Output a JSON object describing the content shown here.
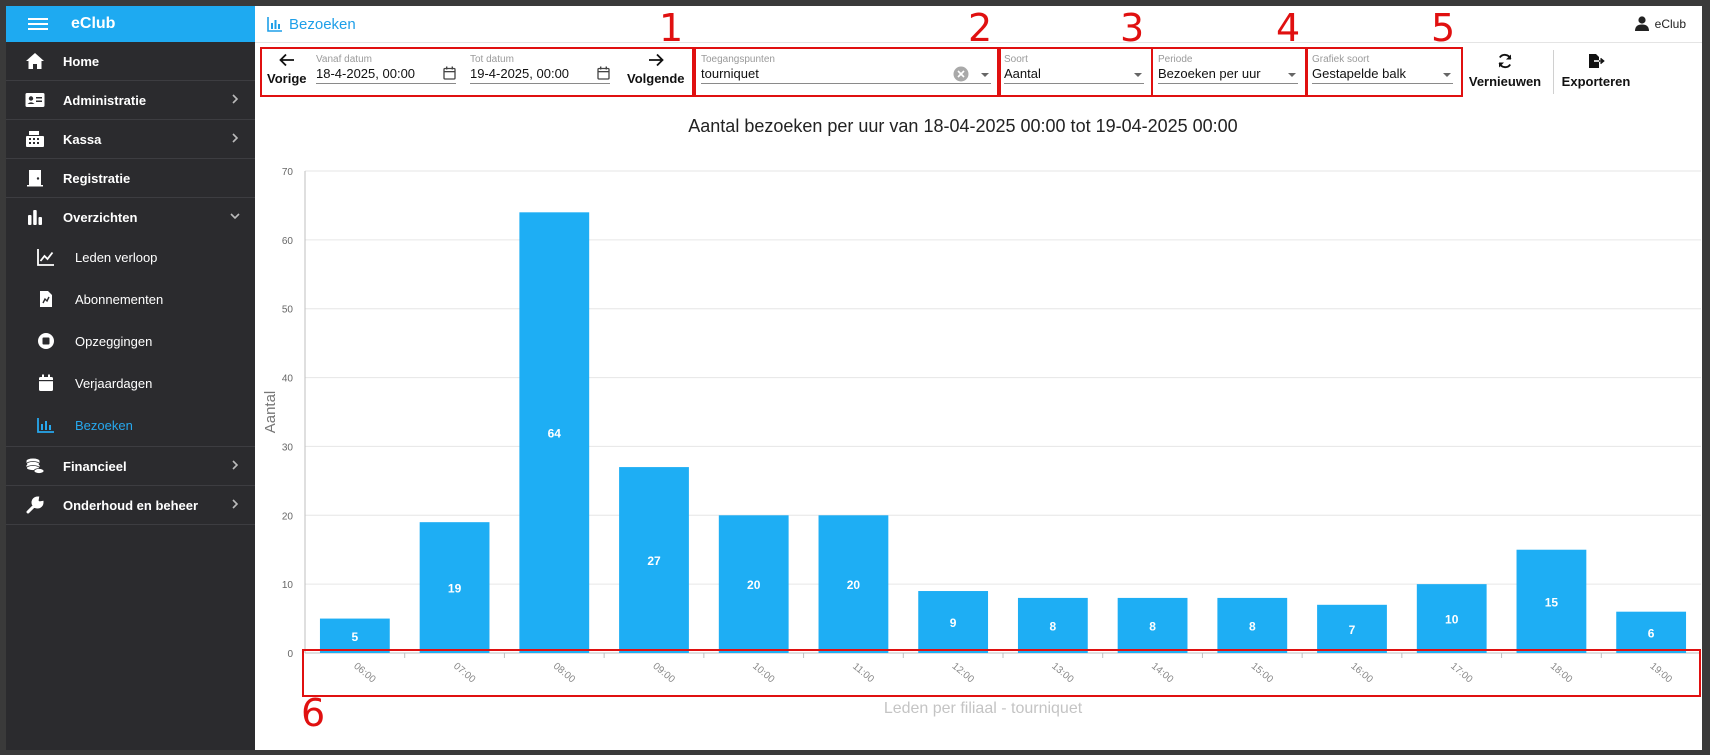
{
  "app": {
    "brand": "eClub",
    "user": "eClub"
  },
  "header": {
    "title": "Bezoeken"
  },
  "sidebar": {
    "items": [
      {
        "key": "home",
        "label": "Home",
        "icon": "home-icon",
        "chevron": false
      },
      {
        "key": "administratie",
        "label": "Administratie",
        "icon": "id-card-icon",
        "chevron": "right"
      },
      {
        "key": "kassa",
        "label": "Kassa",
        "icon": "cash-register-icon",
        "chevron": "right"
      },
      {
        "key": "registratie",
        "label": "Registratie",
        "icon": "door-icon",
        "chevron": false
      },
      {
        "key": "overzichten",
        "label": "Overzichten",
        "icon": "bar-chart-icon",
        "chevron": "down"
      },
      {
        "key": "financieel",
        "label": "Financieel",
        "icon": "coins-icon",
        "chevron": "right"
      },
      {
        "key": "onderhoud",
        "label": "Onderhoud en beheer",
        "icon": "wrench-icon",
        "chevron": "right"
      }
    ],
    "subitems": [
      {
        "label": "Leden verloop",
        "icon": "line-chart-icon"
      },
      {
        "label": "Abonnementen",
        "icon": "document-chart-icon"
      },
      {
        "label": "Opzeggingen",
        "icon": "stop-icon"
      },
      {
        "label": "Verjaardagen",
        "icon": "calendar-icon"
      },
      {
        "label": "Bezoeken",
        "icon": "bar-chart-icon",
        "active": true
      }
    ]
  },
  "toolbar": {
    "prev_label": "Vorige",
    "next_label": "Volgende",
    "from_label": "Vanaf datum",
    "from_value": "18-4-2025, 00:00",
    "to_label": "Tot datum",
    "to_value": "19-4-2025, 00:00",
    "access_label": "Toegangspunten",
    "access_value": "tourniquet",
    "kind_label": "Soort",
    "kind_value": "Aantal",
    "period_label": "Periode",
    "period_value": "Bezoeken per uur",
    "chart_type_label": "Grafiek soort",
    "chart_type_value": "Gestapelde balk",
    "refresh_label": "Vernieuwen",
    "export_label": "Exporteren"
  },
  "annotations": [
    "1",
    "2",
    "3",
    "4",
    "5",
    "6"
  ],
  "colors": {
    "accent": "#1eaaf1",
    "bar": "#1eaef4",
    "sidebar": "#2b2b2e",
    "annotation": "#e01010"
  },
  "chart_data": {
    "type": "bar",
    "title": "Aantal bezoeken per uur van 18-04-2025 00:00 tot 19-04-2025 00:00",
    "xlabel": "Leden per filiaal - tourniquet",
    "ylabel": "Aantal",
    "categories": [
      "06:00",
      "07:00",
      "08:00",
      "09:00",
      "10:00",
      "11:00",
      "12:00",
      "13:00",
      "14:00",
      "15:00",
      "16:00",
      "17:00",
      "18:00",
      "19:00"
    ],
    "values": [
      5,
      19,
      64,
      27,
      20,
      20,
      9,
      8,
      8,
      8,
      7,
      10,
      15,
      6
    ],
    "ylim": [
      0,
      70
    ],
    "yticks": [
      0,
      10,
      20,
      30,
      40,
      50,
      60,
      70
    ],
    "grid": true,
    "data_labels": true
  }
}
